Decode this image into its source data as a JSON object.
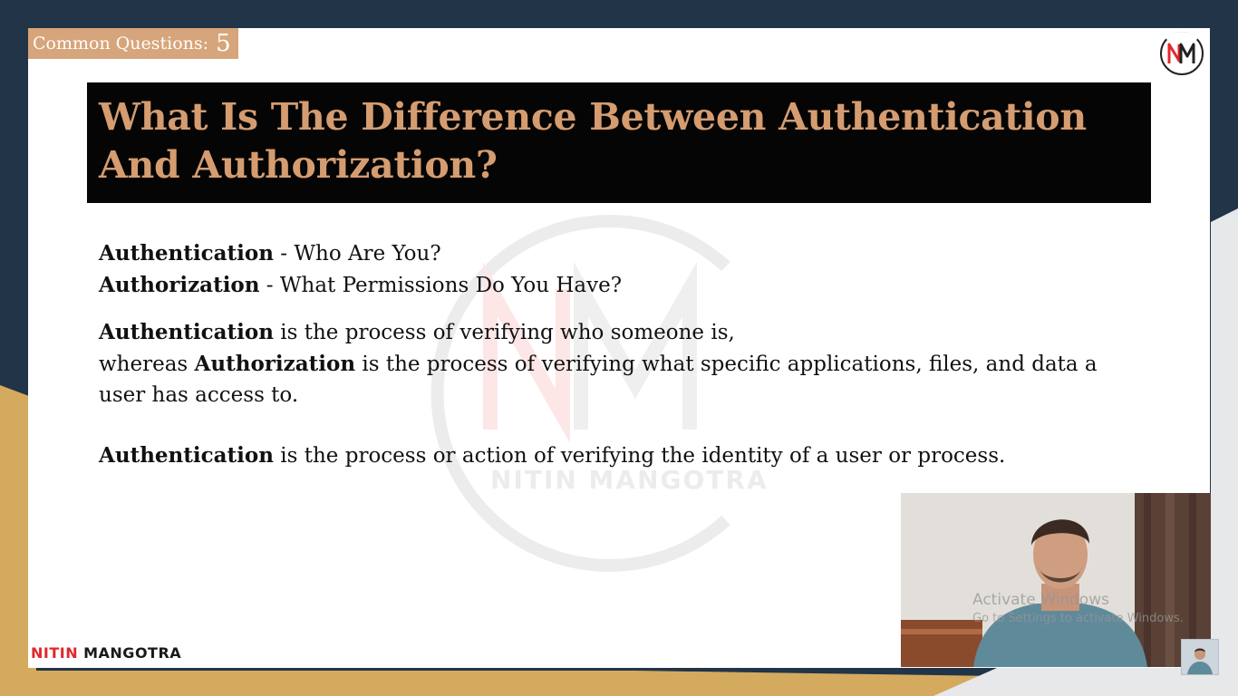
{
  "slide": {
    "badge_label": "Common Questions:",
    "badge_number": "5",
    "logo_text": "NM",
    "title": "What Is The Difference Between Authentication And Authorization?",
    "watermark_text": "NITIN MANGOTRA",
    "lines": {
      "l1_bold": "Authentication",
      "l1_rest": " - Who Are You?",
      "l2_bold": "Authorization",
      "l2_rest": " - What Permissions Do You Have?",
      "p1_bold": "Authentication",
      "p1_rest": " is the process of verifying who someone is,",
      "p2_pre": "whereas ",
      "p2_bold": "Authorization",
      "p2_rest": " is the process of verifying what specific applications, files, and data a",
      "p3": "user has access to.",
      "p4_bold": "Authentication",
      "p4_rest": " is the process or action of verifying the identity of a user or process."
    },
    "footer_first": "NITIN",
    "footer_last": "MANGOTRA"
  },
  "overlay": {
    "activate_title": "Activate Windows",
    "activate_sub": "Go to Settings to activate Windows."
  },
  "colors": {
    "accent": "#d59c70",
    "badge_bg": "#d7a57b",
    "brand_red": "#e3262c",
    "page_bg": "#223447",
    "gold": "#d4aa5e"
  },
  "icons": {
    "logo": "nm-logo-icon",
    "webcam": "presenter-webcam",
    "thumbnail": "presenter-thumbnail"
  }
}
